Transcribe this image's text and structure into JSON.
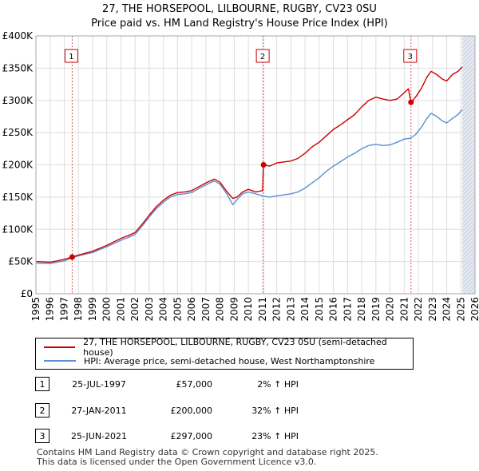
{
  "chart_data": {
    "type": "line",
    "title": "27, THE HORSEPOOL, LILBOURNE, RUGBY, CV23 0SU",
    "subtitle": "Price paid vs. HM Land Registry's House Price Index (HPI)",
    "xlabel": "",
    "ylabel": "",
    "xlim": [
      1995,
      2026
    ],
    "ylim": [
      0,
      400000
    ],
    "x_ticks": [
      "1995",
      "1996",
      "1997",
      "1998",
      "1999",
      "2000",
      "2001",
      "2002",
      "2003",
      "2004",
      "2005",
      "2006",
      "2007",
      "2008",
      "2009",
      "2010",
      "2011",
      "2012",
      "2013",
      "2014",
      "2015",
      "2016",
      "2017",
      "2018",
      "2019",
      "2020",
      "2021",
      "2022",
      "2023",
      "2024",
      "2025",
      "2026"
    ],
    "y_ticks": [
      {
        "value": 0,
        "label": "£0"
      },
      {
        "value": 50000,
        "label": "£50K"
      },
      {
        "value": 100000,
        "label": "£100K"
      },
      {
        "value": 150000,
        "label": "£150K"
      },
      {
        "value": 200000,
        "label": "£200K"
      },
      {
        "value": 250000,
        "label": "£250K"
      },
      {
        "value": 300000,
        "label": "£300K"
      },
      {
        "value": 350000,
        "label": "£350K"
      },
      {
        "value": 400000,
        "label": "£400K"
      }
    ],
    "series": [
      {
        "name": "27, THE HORSEPOOL, LILBOURNE, RUGBY, CV23 0SU (semi-detached house)",
        "color": "#cc0000",
        "points": [
          [
            1995.0,
            50000
          ],
          [
            1996.0,
            49000
          ],
          [
            1996.5,
            51000
          ],
          [
            1997.0,
            53500
          ],
          [
            1997.56,
            57000
          ],
          [
            1998.0,
            60000
          ],
          [
            1999.0,
            66000
          ],
          [
            2000.0,
            75000
          ],
          [
            2001.0,
            86000
          ],
          [
            2001.5,
            90000
          ],
          [
            2002.0,
            95000
          ],
          [
            2002.5,
            108000
          ],
          [
            2003.0,
            122000
          ],
          [
            2003.5,
            135000
          ],
          [
            2004.0,
            145000
          ],
          [
            2004.5,
            153000
          ],
          [
            2005.0,
            157000
          ],
          [
            2005.5,
            158000
          ],
          [
            2006.0,
            160000
          ],
          [
            2006.5,
            166000
          ],
          [
            2007.0,
            172000
          ],
          [
            2007.6,
            178000
          ],
          [
            2008.0,
            173000
          ],
          [
            2008.5,
            158000
          ],
          [
            2008.9,
            148000
          ],
          [
            2009.2,
            150000
          ],
          [
            2009.6,
            158000
          ],
          [
            2010.0,
            162000
          ],
          [
            2010.5,
            158000
          ],
          [
            2011.0,
            160000
          ],
          [
            2011.07,
            200000
          ],
          [
            2011.5,
            198000
          ],
          [
            2012.0,
            203000
          ],
          [
            2013.0,
            206000
          ],
          [
            2013.5,
            210000
          ],
          [
            2014.0,
            218000
          ],
          [
            2014.5,
            228000
          ],
          [
            2015.0,
            235000
          ],
          [
            2015.5,
            245000
          ],
          [
            2016.0,
            255000
          ],
          [
            2016.5,
            262000
          ],
          [
            2017.0,
            270000
          ],
          [
            2017.5,
            278000
          ],
          [
            2018.0,
            290000
          ],
          [
            2018.5,
            300000
          ],
          [
            2019.0,
            305000
          ],
          [
            2019.5,
            302000
          ],
          [
            2020.0,
            300000
          ],
          [
            2020.5,
            302000
          ],
          [
            2021.0,
            312000
          ],
          [
            2021.3,
            318000
          ],
          [
            2021.48,
            297000
          ],
          [
            2021.8,
            305000
          ],
          [
            2022.2,
            318000
          ],
          [
            2022.6,
            336000
          ],
          [
            2022.9,
            345000
          ],
          [
            2023.3,
            340000
          ],
          [
            2023.7,
            333000
          ],
          [
            2024.0,
            330000
          ],
          [
            2024.4,
            340000
          ],
          [
            2024.8,
            345000
          ],
          [
            2025.1,
            352000
          ]
        ]
      },
      {
        "name": "HPI: Average price, semi-detached house, West Northamptonshire",
        "color": "#5b8fd0",
        "points": [
          [
            1995.0,
            47500
          ],
          [
            1996.0,
            47000
          ],
          [
            1996.5,
            49000
          ],
          [
            1997.0,
            51000
          ],
          [
            1997.56,
            55800
          ],
          [
            1998.0,
            59000
          ],
          [
            1999.0,
            64000
          ],
          [
            2000.0,
            73000
          ],
          [
            2001.0,
            83000
          ],
          [
            2001.5,
            87000
          ],
          [
            2002.0,
            92000
          ],
          [
            2002.5,
            105000
          ],
          [
            2003.0,
            119000
          ],
          [
            2003.5,
            132000
          ],
          [
            2004.0,
            142000
          ],
          [
            2004.5,
            150000
          ],
          [
            2005.0,
            154000
          ],
          [
            2005.5,
            155000
          ],
          [
            2006.0,
            157000
          ],
          [
            2006.5,
            163000
          ],
          [
            2007.0,
            169000
          ],
          [
            2007.6,
            175000
          ],
          [
            2008.0,
            170000
          ],
          [
            2008.5,
            154000
          ],
          [
            2008.9,
            138000
          ],
          [
            2009.2,
            146000
          ],
          [
            2009.6,
            155000
          ],
          [
            2010.0,
            158000
          ],
          [
            2010.5,
            155000
          ],
          [
            2011.07,
            151500
          ],
          [
            2011.5,
            150000
          ],
          [
            2012.0,
            152000
          ],
          [
            2013.0,
            155000
          ],
          [
            2013.5,
            158000
          ],
          [
            2014.0,
            164000
          ],
          [
            2014.5,
            172000
          ],
          [
            2015.0,
            180000
          ],
          [
            2015.5,
            190000
          ],
          [
            2016.0,
            198000
          ],
          [
            2016.5,
            205000
          ],
          [
            2017.0,
            212000
          ],
          [
            2017.5,
            218000
          ],
          [
            2018.0,
            225000
          ],
          [
            2018.5,
            230000
          ],
          [
            2019.0,
            232000
          ],
          [
            2019.5,
            230000
          ],
          [
            2020.0,
            231000
          ],
          [
            2020.5,
            235000
          ],
          [
            2021.0,
            240000
          ],
          [
            2021.48,
            241500
          ],
          [
            2021.8,
            247000
          ],
          [
            2022.2,
            258000
          ],
          [
            2022.6,
            272000
          ],
          [
            2022.9,
            280000
          ],
          [
            2023.3,
            275000
          ],
          [
            2023.7,
            268000
          ],
          [
            2024.0,
            265000
          ],
          [
            2024.4,
            272000
          ],
          [
            2024.8,
            278000
          ],
          [
            2025.1,
            286000
          ]
        ]
      }
    ],
    "transactions": [
      {
        "id": "1",
        "x": 1997.56,
        "price": 57000
      },
      {
        "id": "2",
        "x": 2011.07,
        "price": 200000
      },
      {
        "id": "3",
        "x": 2021.48,
        "price": 297000
      }
    ],
    "shaded_from": 2025.1,
    "grid": true
  },
  "legend": {
    "property_label": "27, THE HORSEPOOL, LILBOURNE, RUGBY, CV23 0SU (semi-detached house)",
    "hpi_label": "HPI: Average price, semi-detached house, West Northamptonshire"
  },
  "transactions_table": [
    {
      "num": "1",
      "date": "25-JUL-1997",
      "price": "£57,000",
      "hpi": "2% ↑ HPI"
    },
    {
      "num": "2",
      "date": "27-JAN-2011",
      "price": "£200,000",
      "hpi": "32% ↑ HPI"
    },
    {
      "num": "3",
      "date": "25-JUN-2021",
      "price": "£297,000",
      "hpi": "23% ↑ HPI"
    }
  ],
  "footer": {
    "line1": "Contains HM Land Registry data © Crown copyright and database right 2025.",
    "line2": "This data is licensed under the Open Government Licence v3.0."
  }
}
